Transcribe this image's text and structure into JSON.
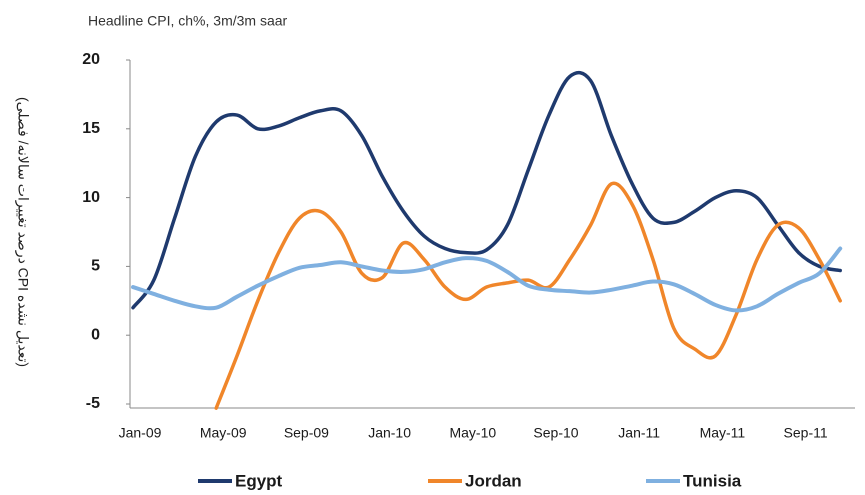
{
  "chart_data": {
    "type": "line",
    "subtitle": "Headline CPI, ch%, 3m/3m saar",
    "y_label": "(درصد تغییرات سالانه/ فصلی CPI تعدیل نشده)",
    "categories": [
      "Jan-09",
      null,
      null,
      null,
      "May-09",
      null,
      null,
      null,
      "Sep-09",
      null,
      null,
      null,
      "Jan-10",
      null,
      null,
      null,
      "May-10",
      null,
      null,
      null,
      "Sep-10",
      null,
      null,
      null,
      "Jan-11",
      null,
      null,
      null,
      "May-11",
      null,
      null,
      null,
      "Sep-11",
      null,
      null
    ],
    "series": [
      {
        "name": "Egypt",
        "color": "#1f3a6e",
        "values": [
          2,
          4,
          8.5,
          13,
          15.5,
          16,
          15,
          15.2,
          15.8,
          16.3,
          16.3,
          14.5,
          11.5,
          9,
          7.2,
          6.3,
          6,
          6.2,
          8,
          12,
          16,
          18.8,
          18.5,
          14.5,
          11,
          8.5,
          8.2,
          9,
          10,
          10.5,
          10,
          8,
          6,
          5,
          4.7
        ]
      },
      {
        "name": "Jordan",
        "color": "#f0862a",
        "values": [
          null,
          null,
          null,
          null,
          -5.3,
          -1.5,
          2.5,
          6,
          8.5,
          9,
          7.5,
          4.5,
          4.2,
          6.7,
          5.5,
          3.5,
          2.6,
          3.5,
          3.8,
          4,
          3.5,
          5.5,
          8,
          11,
          9.5,
          5.5,
          0.5,
          -1,
          -1.5,
          1.5,
          5.5,
          8,
          7.8,
          5.5,
          2.5
        ]
      },
      {
        "name": "Tunisia",
        "color": "#7fb0e0",
        "values": [
          3.5,
          3,
          2.5,
          2.1,
          2,
          2.8,
          3.6,
          4.3,
          4.9,
          5.1,
          5.3,
          5,
          4.7,
          4.6,
          4.8,
          5.3,
          5.6,
          5.4,
          4.6,
          3.6,
          3.3,
          3.2,
          3.1,
          3.3,
          3.6,
          3.9,
          3.7,
          3,
          2.2,
          1.8,
          2.1,
          3,
          3.8,
          4.5,
          6.3
        ]
      }
    ],
    "ylim": [
      -5,
      20
    ],
    "yticks": [
      -5,
      0,
      5,
      10,
      15,
      20
    ],
    "grid": false,
    "legend": "bottom"
  }
}
